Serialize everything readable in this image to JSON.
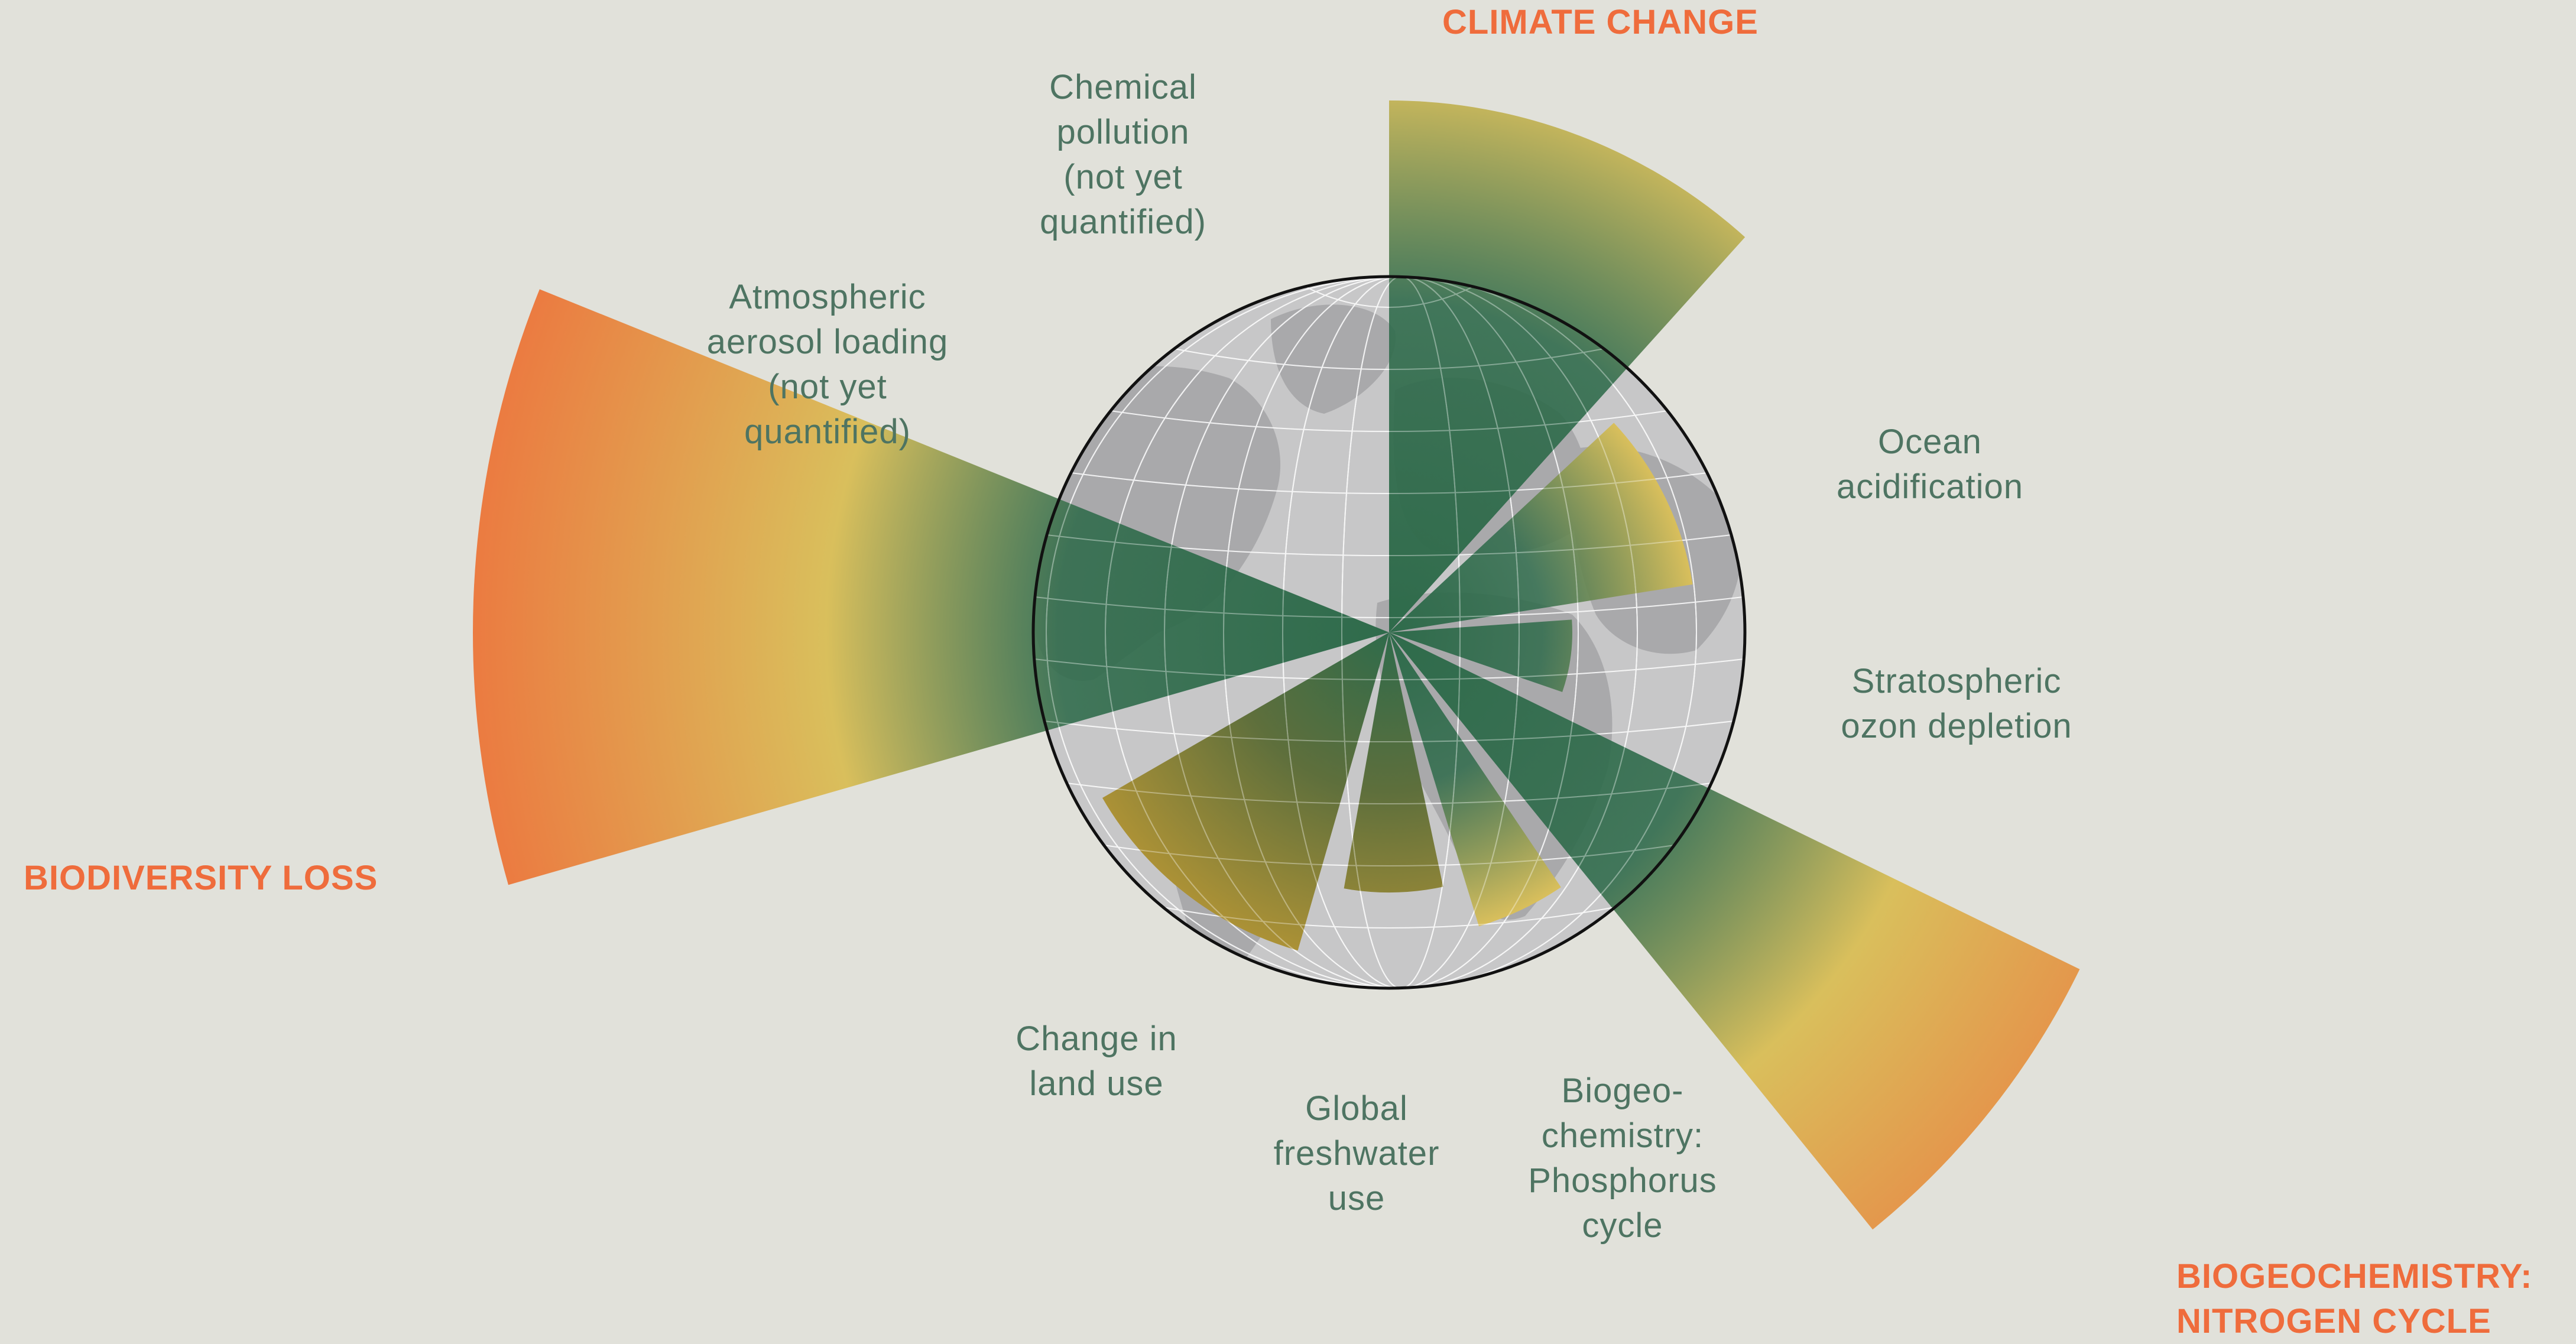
{
  "colors": {
    "background": "#e1e1da",
    "label_text": "#4e7462",
    "highlight_text": "#ef6c3c",
    "globe_land": "#a9a9ab",
    "globe_ocean": "#c7c7c8",
    "grid": "#ffffff",
    "safe_zone": "#2f6b4b",
    "zone_yellow": "#d9bf5c",
    "zone_orange": "#f06a3a"
  },
  "highlights": {
    "climate_change": [
      "CLIMATE CHANGE"
    ],
    "biodiversity_loss": [
      "BIODIVERSITY LOSS"
    ],
    "nitrogen_cycle": [
      "BIOGEOCHEMISTRY:",
      "NITROGEN CYCLE"
    ]
  },
  "labels": {
    "chemical_pollution": [
      "Chemical",
      "pollution",
      "(not yet",
      "quantified)"
    ],
    "aerosol_loading": [
      "Atmospheric",
      "aerosol loading",
      "(not yet",
      "quantified)"
    ],
    "ocean_acidification": [
      "Ocean",
      "acidification"
    ],
    "ozone_depletion": [
      "Stratospheric",
      "ozon depletion"
    ],
    "land_use": [
      "Change in",
      "land use"
    ],
    "freshwater_use": [
      "Global",
      "freshwater",
      "use"
    ],
    "phosphorus_cycle": [
      "Biogeo-",
      "chemistry:",
      "Phosphorus",
      "cycle"
    ]
  }
}
